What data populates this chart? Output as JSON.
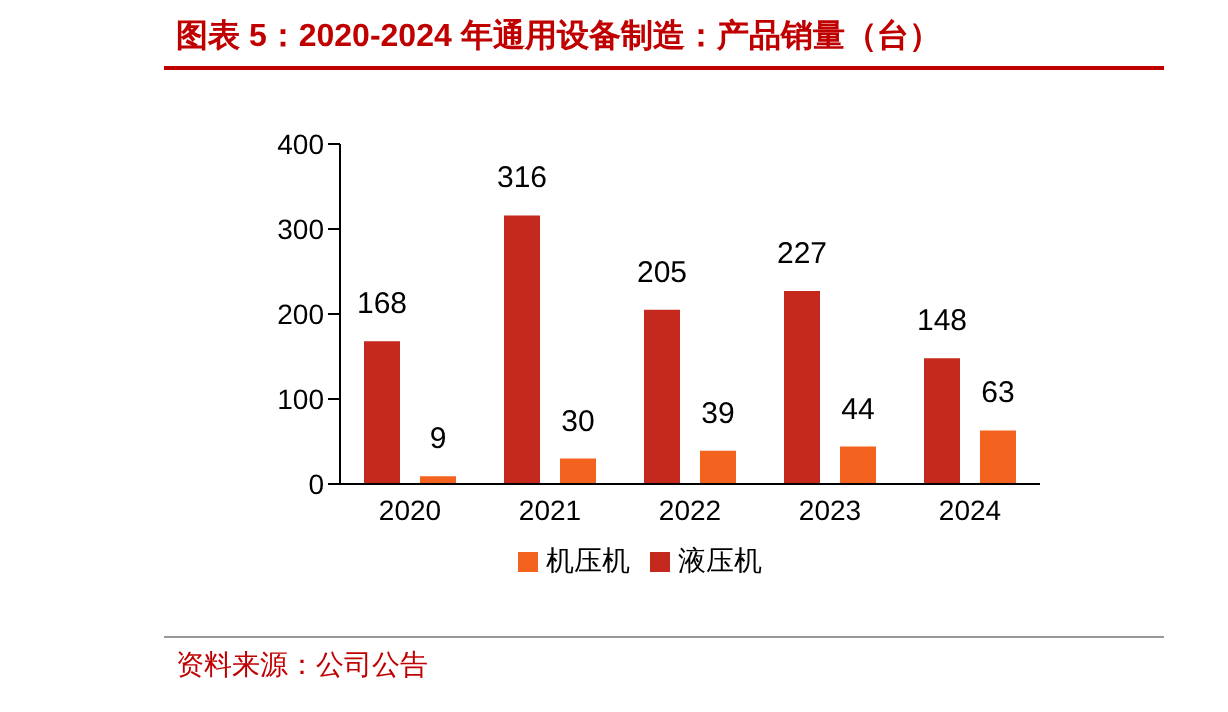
{
  "chart_data": {
    "type": "bar",
    "title": "图表 5：2020-2024 年通用设备制造：产品销量（台）",
    "annotations": [
      "资料来源：公司公告"
    ],
    "categories": [
      "2020",
      "2021",
      "2022",
      "2023",
      "2024"
    ],
    "series": [
      {
        "name": "液压机",
        "color": "#c5281c",
        "values": [
          168,
          316,
          205,
          227,
          148
        ]
      },
      {
        "name": "机压机",
        "color": "#f4621f",
        "values": [
          9,
          30,
          39,
          44,
          63
        ]
      }
    ],
    "ylim": [
      0,
      400
    ],
    "yticks": [
      0,
      100,
      200,
      300,
      400
    ],
    "grid": false,
    "legend": "bottom",
    "data_labels": true
  }
}
